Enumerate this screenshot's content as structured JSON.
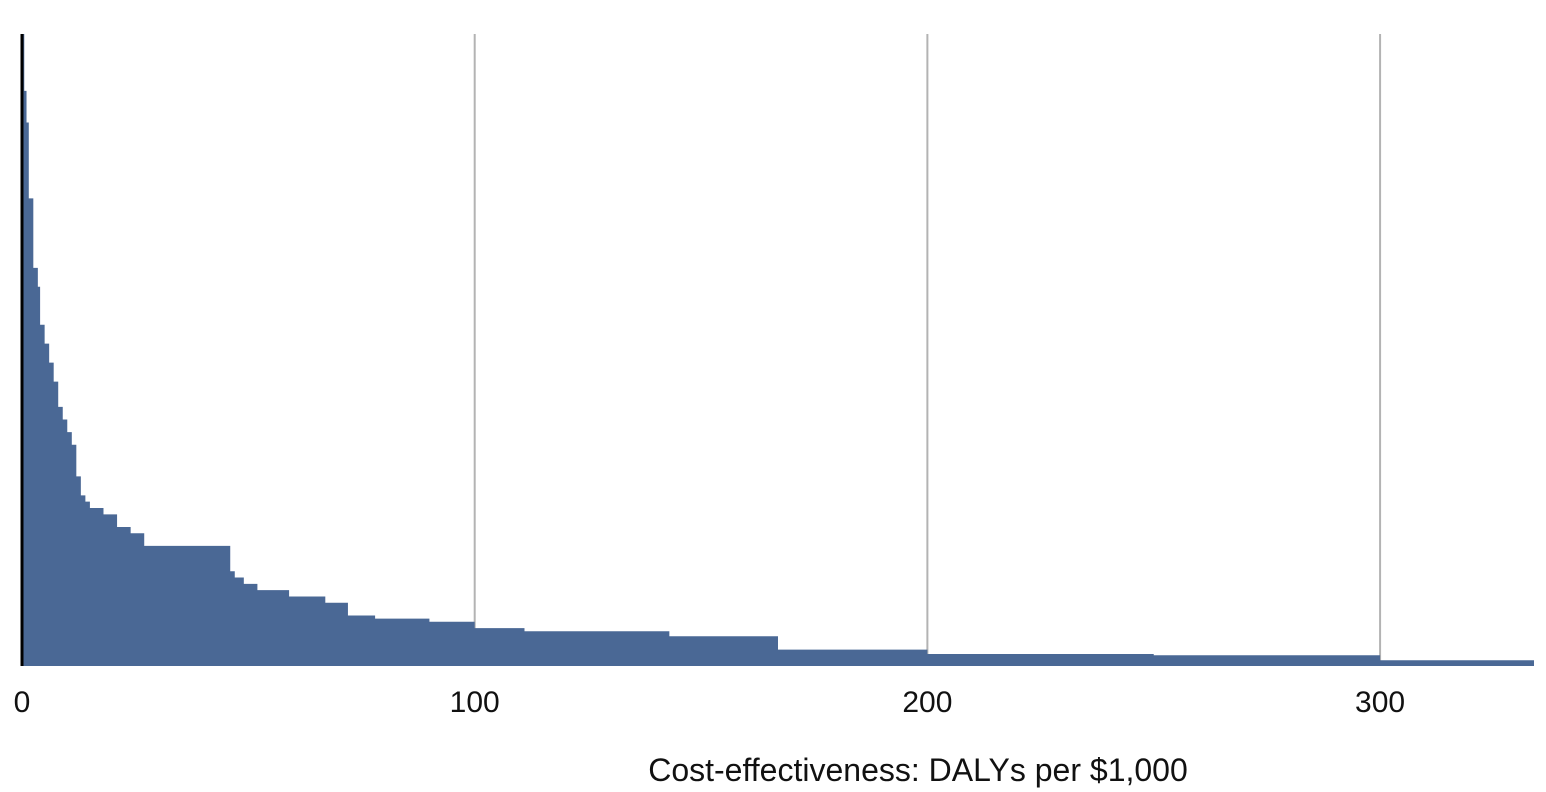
{
  "chart_data": {
    "type": "area",
    "title": "",
    "xlabel": "Cost-effectiveness: DALYs per $1,000",
    "ylabel": "",
    "xlim": [
      0,
      334
    ],
    "ylim": [
      0,
      100
    ],
    "x_ticks": [
      0,
      100,
      200,
      300
    ],
    "grid": {
      "vertical": true,
      "horizontal": false
    },
    "legend": "none",
    "colors": {
      "fill": "#4a6895",
      "grid": "#b3b3b3",
      "axis": "#000000"
    },
    "series": [
      {
        "x": [
          0,
          0.5,
          1,
          1.5,
          2.5,
          3.5,
          4,
          5,
          6,
          7,
          8,
          9,
          10,
          11,
          12,
          13,
          14,
          15,
          18,
          21,
          24,
          27,
          46,
          47,
          49,
          52,
          59,
          67,
          72,
          78,
          90,
          100,
          111,
          143,
          167,
          200,
          250,
          300,
          334
        ],
        "values": [
          100,
          91,
          86,
          74,
          63,
          60,
          54,
          51,
          48,
          45,
          41,
          39,
          37,
          35,
          30,
          27,
          26,
          25,
          24,
          22,
          21,
          19,
          15,
          14,
          13,
          12,
          11,
          10,
          8,
          7.5,
          7,
          6,
          5.5,
          4.7,
          2.6,
          1.9,
          1.7,
          0.9,
          0.9
        ]
      }
    ]
  }
}
